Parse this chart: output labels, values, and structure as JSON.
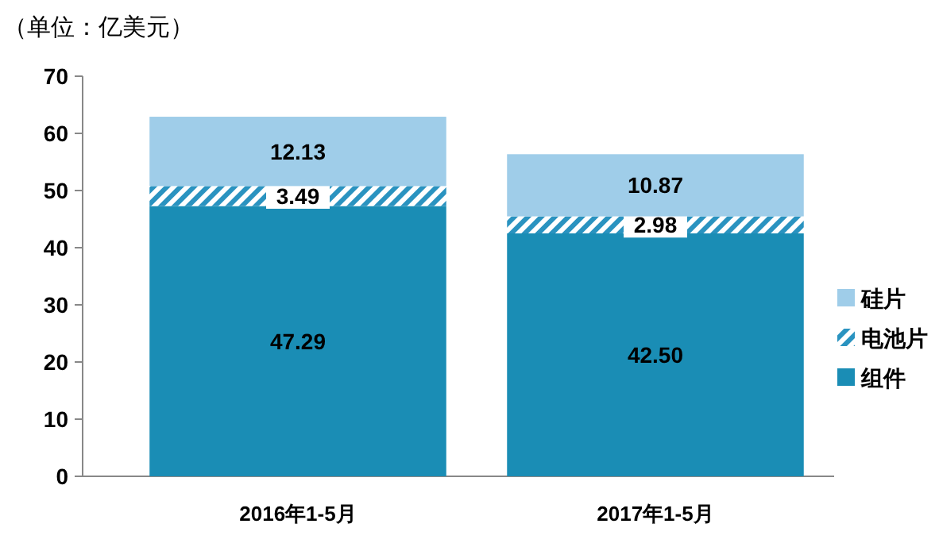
{
  "chart_data": {
    "type": "bar",
    "stacked": true,
    "ylabel": "（单位：亿美元）",
    "categories": [
      "2016年1-5月",
      "2017年1-5月"
    ],
    "series": [
      {
        "name": "组件",
        "color": "#1a8db5",
        "values": [
          47.29,
          42.5
        ],
        "value_labels": [
          "47.29",
          "42.50"
        ]
      },
      {
        "name": "电池片",
        "color": "#2a93c0",
        "values": [
          3.49,
          2.98
        ],
        "value_labels": [
          "3.49",
          "2.98"
        ]
      },
      {
        "name": "硅片",
        "color": "#9fcde9",
        "values": [
          12.13,
          10.87
        ],
        "value_labels": [
          "12.13",
          "10.87"
        ]
      }
    ],
    "ylim": [
      0,
      70
    ],
    "yticks": [
      0,
      10,
      20,
      30,
      40,
      50,
      60,
      70
    ],
    "legend": "right"
  }
}
